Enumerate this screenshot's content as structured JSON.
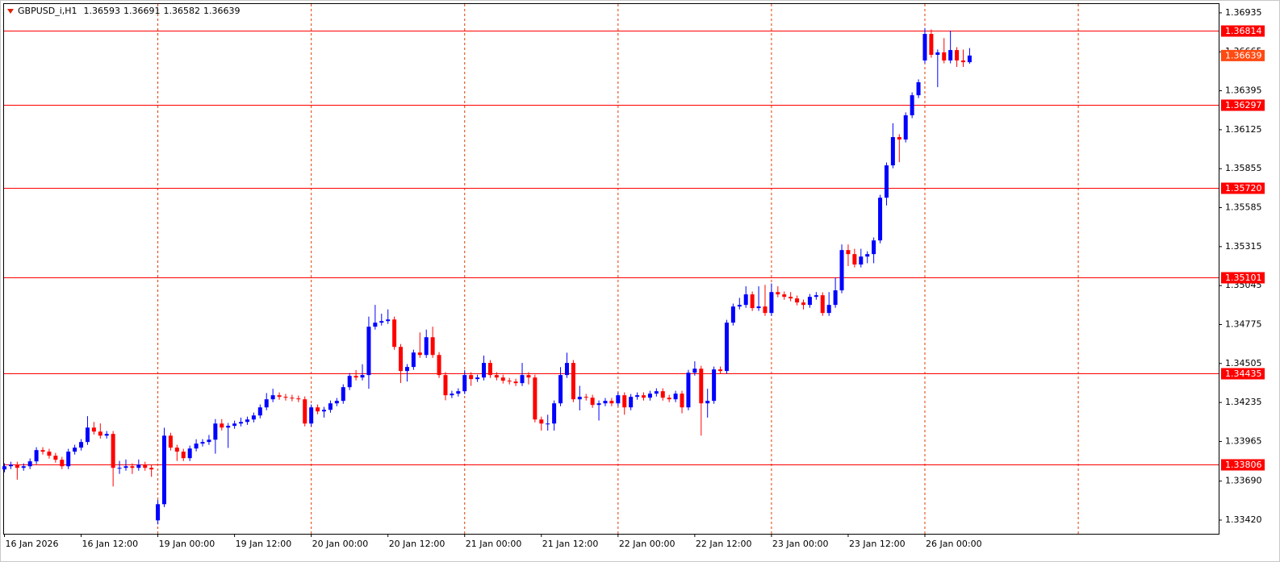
{
  "chart_data": {
    "type": "candlestick",
    "title": "GBPUSD_i,H1",
    "up_color": "#0000ff",
    "down_color": "#ff0000",
    "level_color": "#ff0000",
    "price_label_color": "#ff4a12",
    "categories": [
      "16 Jan 2026",
      null,
      null,
      null,
      null,
      null,
      null,
      null,
      null,
      null,
      null,
      null,
      "16 Jan 12:00",
      null,
      null,
      null,
      null,
      null,
      null,
      null,
      null,
      null,
      null,
      null,
      "19 Jan 00:00",
      null,
      null,
      null,
      null,
      null,
      null,
      null,
      null,
      null,
      null,
      null,
      "19 Jan 12:00",
      null,
      null,
      null,
      null,
      null,
      null,
      null,
      null,
      null,
      null,
      null,
      "20 Jan 00:00",
      null,
      null,
      null,
      null,
      null,
      null,
      null,
      null,
      null,
      null,
      null,
      "20 Jan 12:00",
      null,
      null,
      null,
      null,
      null,
      null,
      null,
      null,
      null,
      null,
      null,
      "21 Jan 00:00",
      null,
      null,
      null,
      null,
      null,
      null,
      null,
      null,
      null,
      null,
      null,
      "21 Jan 12:00",
      null,
      null,
      null,
      null,
      null,
      null,
      null,
      null,
      null,
      null,
      null,
      "22 Jan 00:00",
      null,
      null,
      null,
      null,
      null,
      null,
      null,
      null,
      null,
      null,
      null,
      "22 Jan 12:00",
      null,
      null,
      null,
      null,
      null,
      null,
      null,
      null,
      null,
      null,
      null,
      "23 Jan 00:00",
      null,
      null,
      null,
      null,
      null,
      null,
      null,
      null,
      null,
      null,
      null,
      "23 Jan 12:00",
      null,
      null,
      null,
      null,
      null,
      null,
      null,
      null,
      null,
      null,
      null,
      "26 Jan 00:00",
      null,
      null,
      null,
      null,
      null,
      null,
      null
    ],
    "open": [
      1.33771,
      1.33793,
      1.33804,
      1.33782,
      1.33793,
      1.33827,
      1.33905,
      1.33894,
      1.33866,
      1.33838,
      1.33793,
      1.33894,
      1.33922,
      1.33961,
      1.34061,
      1.34033,
      1.34005,
      1.34017,
      1.33782,
      1.33782,
      1.33793,
      1.33782,
      1.33804,
      1.33782,
      1.33418,
      1.3353,
      1.34005,
      1.33922,
      1.33894,
      1.33849,
      1.33916,
      1.3395,
      1.33961,
      1.33977,
      1.34089,
      1.34061,
      1.34073,
      1.34089,
      1.341,
      1.34117,
      1.34145,
      1.34201,
      1.34257,
      1.34285,
      1.34274,
      1.34268,
      1.34263,
      1.34257,
      1.34089,
      1.34201,
      1.34173,
      1.34184,
      1.34229,
      1.34246,
      1.34341,
      1.34419,
      1.34408,
      1.34425,
      1.3476,
      1.34788,
      1.34799,
      1.3481,
      1.3462,
      1.34453,
      1.34481,
      1.34581,
      1.34564,
      1.34687,
      1.34564,
      1.34425,
      1.34285,
      1.34296,
      1.34313,
      1.34425,
      1.34397,
      1.34408,
      1.34509,
      1.34425,
      1.34408,
      1.34386,
      1.3438,
      1.34369,
      1.34425,
      1.34408,
      1.34117,
      1.34089,
      1.34089,
      1.34229,
      1.34425,
      1.34509,
      1.34257,
      1.34274,
      1.34268,
      1.34218,
      1.34229,
      1.34246,
      1.34229,
      1.34285,
      1.34201,
      1.34274,
      1.34285,
      1.34268,
      1.34296,
      1.34313,
      1.34268,
      1.34257,
      1.34296,
      1.34201,
      1.34441,
      1.34469,
      1.34229,
      1.34246,
      1.34464,
      1.34453,
      1.34788,
      1.349,
      1.34911,
      1.34984,
      1.34889,
      1.349,
      1.34855,
      1.35,
      1.34984,
      1.34967,
      1.34956,
      1.34928,
      1.34911,
      1.34967,
      1.34978,
      1.34855,
      1.34911,
      1.35012,
      1.35291,
      1.35263,
      1.35191,
      1.35246,
      1.35263,
      1.35358,
      1.35654,
      1.35878,
      1.36074,
      1.36057,
      1.36225,
      1.36364,
      1.36605,
      1.36789,
      1.36644,
      1.36661,
      1.36605,
      1.36677,
      1.36605,
      1.36593
    ],
    "high": [
      1.33813,
      1.33824,
      1.33824,
      1.33813,
      1.33847,
      1.33925,
      1.33925,
      1.33914,
      1.33886,
      1.33858,
      1.33914,
      1.33942,
      1.33981,
      1.3414,
      1.341,
      1.3409,
      1.34037,
      1.34037,
      1.3383,
      1.3384,
      1.33813,
      1.3384,
      1.33824,
      1.33802,
      1.3356,
      1.3406,
      1.34025,
      1.33942,
      1.33914,
      1.33936,
      1.3398,
      1.33981,
      1.3401,
      1.3412,
      1.3412,
      1.34093,
      1.34109,
      1.3413,
      1.34137,
      1.34165,
      1.34221,
      1.343,
      1.3433,
      1.34305,
      1.34294,
      1.34288,
      1.34283,
      1.34277,
      1.34221,
      1.34221,
      1.34204,
      1.34249,
      1.34266,
      1.34361,
      1.34439,
      1.3446,
      1.345,
      1.3483,
      1.34911,
      1.3485,
      1.3488,
      1.3483,
      1.3464,
      1.34501,
      1.34601,
      1.3472,
      1.3474,
      1.3476,
      1.34584,
      1.34445,
      1.34316,
      1.34333,
      1.3446,
      1.34445,
      1.34428,
      1.3456,
      1.34529,
      1.34445,
      1.34428,
      1.34406,
      1.344,
      1.34509,
      1.34445,
      1.34428,
      1.34137,
      1.3415,
      1.34249,
      1.3448,
      1.3458,
      1.34529,
      1.3435,
      1.34294,
      1.34288,
      1.34249,
      1.34266,
      1.34266,
      1.34305,
      1.34305,
      1.34294,
      1.34305,
      1.34305,
      1.34316,
      1.34333,
      1.34333,
      1.34288,
      1.34316,
      1.34316,
      1.34461,
      1.3452,
      1.34489,
      1.3433,
      1.34484,
      1.34484,
      1.34808,
      1.3492,
      1.3496,
      1.3504,
      1.35004,
      1.3504,
      1.3505,
      1.3506,
      1.3504,
      1.35004,
      1.35,
      1.34976,
      1.34948,
      1.34987,
      1.35,
      1.34998,
      1.35,
      1.351,
      1.3533,
      1.3533,
      1.353,
      1.353,
      1.35283,
      1.35378,
      1.35674,
      1.35898,
      1.3617,
      1.36094,
      1.36245,
      1.36384,
      1.36474,
      1.3683,
      1.3682,
      1.36681,
      1.3676,
      1.3681,
      1.36697,
      1.3668,
      1.36691
    ],
    "low": [
      1.33751,
      1.33773,
      1.337,
      1.33762,
      1.33773,
      1.33807,
      1.33874,
      1.33846,
      1.33818,
      1.33773,
      1.33773,
      1.33874,
      1.33902,
      1.33941,
      1.34013,
      1.33985,
      1.33985,
      1.33653,
      1.3374,
      1.33762,
      1.3374,
      1.33762,
      1.33762,
      1.3372,
      1.3339,
      1.3351,
      1.33902,
      1.3383,
      1.33829,
      1.33829,
      1.33896,
      1.3393,
      1.33941,
      1.3388,
      1.34041,
      1.3392,
      1.34053,
      1.34069,
      1.3408,
      1.34097,
      1.34125,
      1.34181,
      1.34237,
      1.34254,
      1.34248,
      1.34243,
      1.34237,
      1.34069,
      1.34069,
      1.34153,
      1.3413,
      1.34164,
      1.34209,
      1.34226,
      1.34321,
      1.34388,
      1.34388,
      1.3433,
      1.3474,
      1.34768,
      1.34779,
      1.346,
      1.3437,
      1.3438,
      1.34461,
      1.34544,
      1.34544,
      1.34544,
      1.34405,
      1.3425,
      1.34265,
      1.34276,
      1.34293,
      1.3435,
      1.34377,
      1.34388,
      1.34405,
      1.34388,
      1.34366,
      1.3436,
      1.34349,
      1.34349,
      1.3436,
      1.34097,
      1.3404,
      1.3404,
      1.3404,
      1.34209,
      1.34405,
      1.34237,
      1.3418,
      1.34248,
      1.34198,
      1.3411,
      1.34209,
      1.34209,
      1.34209,
      1.3415,
      1.34181,
      1.34254,
      1.34248,
      1.34248,
      1.34276,
      1.34248,
      1.34237,
      1.34237,
      1.3416,
      1.34181,
      1.34421,
      1.34005,
      1.3413,
      1.34226,
      1.34433,
      1.34433,
      1.34768,
      1.3488,
      1.34891,
      1.34869,
      1.34869,
      1.34835,
      1.34835,
      1.34964,
      1.34947,
      1.34936,
      1.34908,
      1.3488,
      1.34891,
      1.34947,
      1.34835,
      1.34835,
      1.34891,
      1.34992,
      1.3518,
      1.35171,
      1.35171,
      1.352,
      1.352,
      1.35338,
      1.356,
      1.35858,
      1.359,
      1.36037,
      1.36205,
      1.36344,
      1.36585,
      1.36624,
      1.3642,
      1.36585,
      1.36585,
      1.3656,
      1.3656,
      1.36582
    ],
    "close": [
      1.33793,
      1.33804,
      1.33782,
      1.33793,
      1.33827,
      1.33905,
      1.33894,
      1.33866,
      1.33838,
      1.33793,
      1.33894,
      1.33922,
      1.33961,
      1.34061,
      1.34033,
      1.34005,
      1.34017,
      1.33782,
      1.33782,
      1.33793,
      1.33782,
      1.33804,
      1.33782,
      1.33771,
      1.3353,
      1.34005,
      1.33922,
      1.33894,
      1.33849,
      1.33916,
      1.3395,
      1.33961,
      1.33977,
      1.34089,
      1.34061,
      1.34073,
      1.34089,
      1.341,
      1.34117,
      1.34145,
      1.34201,
      1.34257,
      1.34285,
      1.34274,
      1.34268,
      1.34263,
      1.34257,
      1.34089,
      1.34201,
      1.34173,
      1.34184,
      1.34229,
      1.34246,
      1.34341,
      1.34419,
      1.34408,
      1.34425,
      1.3476,
      1.34788,
      1.34799,
      1.3481,
      1.3462,
      1.34453,
      1.34481,
      1.34581,
      1.34564,
      1.34687,
      1.34564,
      1.34425,
      1.34285,
      1.34296,
      1.34313,
      1.34425,
      1.34397,
      1.34408,
      1.34509,
      1.34425,
      1.34408,
      1.34386,
      1.3438,
      1.34369,
      1.34425,
      1.34408,
      1.34117,
      1.34089,
      1.34089,
      1.34229,
      1.34425,
      1.34509,
      1.34257,
      1.34274,
      1.34268,
      1.34218,
      1.34229,
      1.34246,
      1.34229,
      1.34285,
      1.34201,
      1.34274,
      1.34285,
      1.34268,
      1.34296,
      1.34313,
      1.34268,
      1.34257,
      1.34296,
      1.34201,
      1.34441,
      1.34469,
      1.34229,
      1.34246,
      1.34464,
      1.34453,
      1.34788,
      1.349,
      1.34911,
      1.34984,
      1.34889,
      1.349,
      1.34855,
      1.35,
      1.34984,
      1.34967,
      1.34956,
      1.34928,
      1.34911,
      1.34967,
      1.34978,
      1.34855,
      1.34911,
      1.35012,
      1.35291,
      1.35263,
      1.35191,
      1.35246,
      1.35263,
      1.35358,
      1.35654,
      1.35878,
      1.36074,
      1.36057,
      1.36225,
      1.36364,
      1.36454,
      1.36789,
      1.36644,
      1.36661,
      1.36605,
      1.36677,
      1.36605,
      1.36593,
      1.36639
    ],
    "ylim": [
      1.33325,
      1.36996
    ],
    "yticks": [
      1.36935,
      1.36665,
      1.36395,
      1.36125,
      1.35855,
      1.35585,
      1.35315,
      1.35045,
      1.34775,
      1.34505,
      1.34235,
      1.33965,
      {
        "value": 1.3369,
        "label": "1.33690"
      },
      {
        "value": 1.3342,
        "label": "1.33420"
      }
    ],
    "levels": [
      1.36814,
      1.36297,
      {
        "value": 1.3572,
        "label": "1.35720"
      },
      1.35101,
      1.34435,
      1.33806
    ]
  }
}
